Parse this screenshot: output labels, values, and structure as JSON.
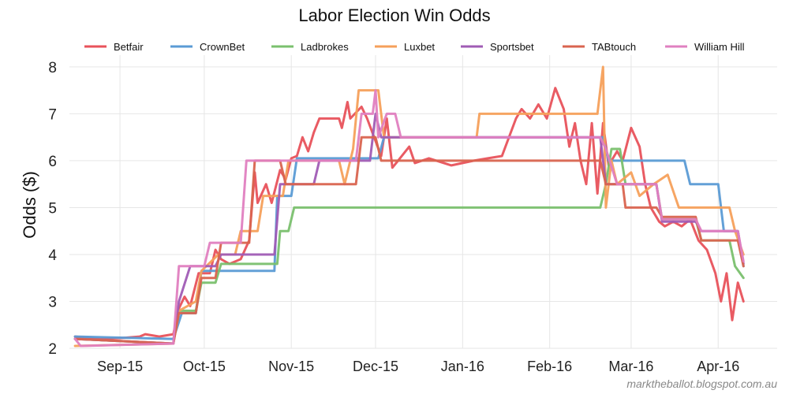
{
  "chart_data": {
    "type": "line",
    "title": "Labor Election Win Odds",
    "xlabel": "",
    "ylabel": "Odds ($)",
    "credit": "marktheballot.blogspot.com.au",
    "xlim": [
      "2015-08-14",
      "2016-04-22"
    ],
    "ylim": [
      2,
      8.25
    ],
    "yticks": [
      2,
      3,
      4,
      5,
      6,
      7,
      8
    ],
    "xticks": [
      {
        "date": "2015-09-01",
        "label": "Sep-15"
      },
      {
        "date": "2015-10-01",
        "label": "Oct-15"
      },
      {
        "date": "2015-11-01",
        "label": "Nov-15"
      },
      {
        "date": "2015-12-01",
        "label": "Dec-15"
      },
      {
        "date": "2016-01-01",
        "label": "Jan-16"
      },
      {
        "date": "2016-02-01",
        "label": "Feb-16"
      },
      {
        "date": "2016-03-01",
        "label": "Mar-16"
      },
      {
        "date": "2016-04-01",
        "label": "Apr-16"
      }
    ],
    "grid": true,
    "legend_position": "top",
    "series": [
      {
        "name": "Betfair",
        "color": "#e8525b",
        "points": [
          [
            "2015-08-16",
            2.25
          ],
          [
            "2015-08-25",
            2.2
          ],
          [
            "2015-09-02",
            2.22
          ],
          [
            "2015-09-08",
            2.25
          ],
          [
            "2015-09-10",
            2.3
          ],
          [
            "2015-09-15",
            2.25
          ],
          [
            "2015-09-20",
            2.3
          ],
          [
            "2015-09-22",
            2.85
          ],
          [
            "2015-09-24",
            3.1
          ],
          [
            "2015-09-26",
            2.9
          ],
          [
            "2015-09-29",
            3.6
          ],
          [
            "2015-10-03",
            3.6
          ],
          [
            "2015-10-05",
            4.1
          ],
          [
            "2015-10-07",
            3.9
          ],
          [
            "2015-10-10",
            3.8
          ],
          [
            "2015-10-14",
            3.9
          ],
          [
            "2015-10-17",
            4.3
          ],
          [
            "2015-10-19",
            5.75
          ],
          [
            "2015-10-20",
            5.1
          ],
          [
            "2015-10-23",
            5.5
          ],
          [
            "2015-10-25",
            5.1
          ],
          [
            "2015-10-28",
            5.8
          ],
          [
            "2015-10-30",
            5.6
          ],
          [
            "2015-11-01",
            6.05
          ],
          [
            "2015-11-03",
            6.1
          ],
          [
            "2015-11-05",
            6.5
          ],
          [
            "2015-11-07",
            6.2
          ],
          [
            "2015-11-09",
            6.6
          ],
          [
            "2015-11-11",
            6.9
          ],
          [
            "2015-11-18",
            6.9
          ],
          [
            "2015-11-19",
            6.7
          ],
          [
            "2015-11-21",
            7.25
          ],
          [
            "2015-11-22",
            6.9
          ],
          [
            "2015-11-26",
            7.15
          ],
          [
            "2015-11-28",
            6.9
          ],
          [
            "2015-12-03",
            6.1
          ],
          [
            "2015-12-05",
            6.9
          ],
          [
            "2015-12-07",
            5.85
          ],
          [
            "2015-12-09",
            6.0
          ],
          [
            "2015-12-13",
            6.3
          ],
          [
            "2015-12-15",
            5.95
          ],
          [
            "2015-12-20",
            6.05
          ],
          [
            "2015-12-28",
            5.9
          ],
          [
            "2016-01-05",
            6.0
          ],
          [
            "2016-01-10",
            6.05
          ],
          [
            "2016-01-15",
            6.1
          ],
          [
            "2016-01-20",
            6.9
          ],
          [
            "2016-01-22",
            7.1
          ],
          [
            "2016-01-25",
            6.9
          ],
          [
            "2016-01-28",
            7.2
          ],
          [
            "2016-01-31",
            6.9
          ],
          [
            "2016-02-03",
            7.55
          ],
          [
            "2016-02-06",
            7.1
          ],
          [
            "2016-02-08",
            6.3
          ],
          [
            "2016-02-10",
            6.8
          ],
          [
            "2016-02-12",
            6.0
          ],
          [
            "2016-02-14",
            5.5
          ],
          [
            "2016-02-16",
            6.8
          ],
          [
            "2016-02-18",
            5.3
          ],
          [
            "2016-02-20",
            6.8
          ],
          [
            "2016-02-22",
            5.9
          ],
          [
            "2016-02-25",
            6.2
          ],
          [
            "2016-02-27",
            6.0
          ],
          [
            "2016-03-01",
            6.7
          ],
          [
            "2016-03-04",
            6.3
          ],
          [
            "2016-03-06",
            5.5
          ],
          [
            "2016-03-08",
            5.0
          ],
          [
            "2016-03-11",
            4.7
          ],
          [
            "2016-03-13",
            4.6
          ],
          [
            "2016-03-16",
            4.7
          ],
          [
            "2016-03-19",
            4.6
          ],
          [
            "2016-03-22",
            4.75
          ],
          [
            "2016-03-25",
            4.3
          ],
          [
            "2016-03-28",
            4.1
          ],
          [
            "2016-03-31",
            3.6
          ],
          [
            "2016-04-02",
            3.0
          ],
          [
            "2016-04-04",
            3.6
          ],
          [
            "2016-04-06",
            2.6
          ],
          [
            "2016-04-08",
            3.4
          ],
          [
            "2016-04-10",
            3.0
          ]
        ]
      },
      {
        "name": "CrownBet",
        "color": "#5b9bd5",
        "points": [
          [
            "2015-08-16",
            2.25
          ],
          [
            "2015-09-20",
            2.2
          ],
          [
            "2015-09-23",
            2.75
          ],
          [
            "2015-09-28",
            2.75
          ],
          [
            "2015-09-30",
            3.65
          ],
          [
            "2015-10-26",
            3.65
          ],
          [
            "2015-10-27",
            5.25
          ],
          [
            "2015-11-01",
            5.25
          ],
          [
            "2015-11-03",
            6.05
          ],
          [
            "2015-12-02",
            6.05
          ],
          [
            "2015-12-04",
            6.5
          ],
          [
            "2016-02-20",
            6.5
          ],
          [
            "2016-02-22",
            6.0
          ],
          [
            "2016-03-20",
            6.0
          ],
          [
            "2016-03-22",
            5.5
          ],
          [
            "2016-04-01",
            5.5
          ],
          [
            "2016-04-03",
            4.5
          ],
          [
            "2016-04-08",
            4.5
          ],
          [
            "2016-04-10",
            3.75
          ]
        ]
      },
      {
        "name": "Ladbrokes",
        "color": "#7ac06e",
        "points": [
          [
            "2015-08-16",
            2.2
          ],
          [
            "2015-09-20",
            2.1
          ],
          [
            "2015-09-22",
            2.8
          ],
          [
            "2015-09-28",
            2.8
          ],
          [
            "2015-09-30",
            3.4
          ],
          [
            "2015-10-05",
            3.4
          ],
          [
            "2015-10-07",
            3.8
          ],
          [
            "2015-10-27",
            3.8
          ],
          [
            "2015-10-28",
            4.5
          ],
          [
            "2015-10-31",
            4.5
          ],
          [
            "2015-11-02",
            5.0
          ],
          [
            "2016-02-19",
            5.0
          ],
          [
            "2016-02-21",
            5.5
          ],
          [
            "2016-02-23",
            6.25
          ],
          [
            "2016-02-26",
            6.25
          ],
          [
            "2016-02-28",
            5.5
          ],
          [
            "2016-03-10",
            5.5
          ],
          [
            "2016-03-12",
            4.75
          ],
          [
            "2016-03-24",
            4.75
          ],
          [
            "2016-03-26",
            4.3
          ],
          [
            "2016-04-05",
            4.3
          ],
          [
            "2016-04-07",
            3.75
          ],
          [
            "2016-04-10",
            3.5
          ]
        ]
      },
      {
        "name": "Luxbet",
        "color": "#f5a05b",
        "points": [
          [
            "2015-08-16",
            2.05
          ],
          [
            "2015-09-20",
            2.1
          ],
          [
            "2015-09-22",
            2.8
          ],
          [
            "2015-09-28",
            3.0
          ],
          [
            "2015-09-30",
            3.65
          ],
          [
            "2015-10-06",
            4.0
          ],
          [
            "2015-10-12",
            4.0
          ],
          [
            "2015-10-14",
            4.5
          ],
          [
            "2015-10-20",
            4.5
          ],
          [
            "2015-10-22",
            5.25
          ],
          [
            "2015-10-29",
            5.25
          ],
          [
            "2015-10-31",
            6.0
          ],
          [
            "2015-11-18",
            6.0
          ],
          [
            "2015-11-20",
            5.5
          ],
          [
            "2015-11-23",
            6.25
          ],
          [
            "2015-11-25",
            7.5
          ],
          [
            "2015-12-02",
            7.5
          ],
          [
            "2015-12-04",
            6.5
          ],
          [
            "2016-01-06",
            6.5
          ],
          [
            "2016-01-07",
            7.0
          ],
          [
            "2016-02-18",
            7.0
          ],
          [
            "2016-02-20",
            8.0
          ],
          [
            "2016-02-21",
            5.0
          ],
          [
            "2016-02-23",
            6.0
          ],
          [
            "2016-02-25",
            5.5
          ],
          [
            "2016-03-01",
            5.75
          ],
          [
            "2016-03-04",
            5.25
          ],
          [
            "2016-03-09",
            5.5
          ],
          [
            "2016-03-14",
            5.7
          ],
          [
            "2016-03-18",
            5.0
          ],
          [
            "2016-04-05",
            5.0
          ],
          [
            "2016-04-07",
            4.5
          ],
          [
            "2016-04-10",
            4.0
          ]
        ]
      },
      {
        "name": "Sportsbet",
        "color": "#a05cb5",
        "points": [
          [
            "2015-08-16",
            2.2
          ],
          [
            "2015-09-20",
            2.1
          ],
          [
            "2015-09-22",
            3.0
          ],
          [
            "2015-09-26",
            3.75
          ],
          [
            "2015-10-05",
            3.75
          ],
          [
            "2015-10-07",
            4.0
          ],
          [
            "2015-10-26",
            4.0
          ],
          [
            "2015-10-28",
            5.5
          ],
          [
            "2015-11-09",
            5.5
          ],
          [
            "2015-11-11",
            6.0
          ],
          [
            "2015-11-29",
            6.0
          ],
          [
            "2015-12-01",
            7.0
          ],
          [
            "2015-12-03",
            6.5
          ],
          [
            "2016-02-19",
            6.5
          ],
          [
            "2016-02-21",
            5.5
          ],
          [
            "2016-03-10",
            5.5
          ],
          [
            "2016-03-12",
            4.7
          ],
          [
            "2016-03-24",
            4.7
          ],
          [
            "2016-03-26",
            4.5
          ],
          [
            "2016-04-08",
            4.5
          ],
          [
            "2016-04-10",
            3.8
          ]
        ]
      },
      {
        "name": "TABtouch",
        "color": "#d9644f",
        "points": [
          [
            "2015-08-16",
            2.2
          ],
          [
            "2015-09-20",
            2.1
          ],
          [
            "2015-09-22",
            2.75
          ],
          [
            "2015-09-28",
            2.75
          ],
          [
            "2015-09-30",
            3.5
          ],
          [
            "2015-10-05",
            3.5
          ],
          [
            "2015-10-07",
            4.25
          ],
          [
            "2015-10-17",
            4.25
          ],
          [
            "2015-10-19",
            6.0
          ],
          [
            "2015-10-28",
            6.0
          ],
          [
            "2015-10-30",
            5.5
          ],
          [
            "2015-11-24",
            5.5
          ],
          [
            "2015-11-26",
            6.5
          ],
          [
            "2015-12-01",
            6.5
          ],
          [
            "2015-12-03",
            6.0
          ],
          [
            "2016-02-19",
            6.0
          ],
          [
            "2016-02-21",
            5.5
          ],
          [
            "2016-02-27",
            5.5
          ],
          [
            "2016-02-28",
            5.0
          ],
          [
            "2016-03-10",
            5.0
          ],
          [
            "2016-03-12",
            4.8
          ],
          [
            "2016-03-24",
            4.8
          ],
          [
            "2016-03-26",
            4.3
          ],
          [
            "2016-04-08",
            4.3
          ],
          [
            "2016-04-10",
            3.75
          ]
        ]
      },
      {
        "name": "William Hill",
        "color": "#e080c0",
        "points": [
          [
            "2015-08-16",
            2.2
          ],
          [
            "2015-08-18",
            2.05
          ],
          [
            "2015-09-20",
            2.1
          ],
          [
            "2015-09-22",
            3.75
          ],
          [
            "2015-10-01",
            3.75
          ],
          [
            "2015-10-03",
            4.25
          ],
          [
            "2015-10-14",
            4.25
          ],
          [
            "2015-10-16",
            6.0
          ],
          [
            "2015-11-24",
            6.0
          ],
          [
            "2015-11-26",
            7.0
          ],
          [
            "2015-11-30",
            7.0
          ],
          [
            "2015-12-01",
            7.5
          ],
          [
            "2015-12-02",
            6.5
          ],
          [
            "2015-12-05",
            7.0
          ],
          [
            "2015-12-08",
            7.0
          ],
          [
            "2015-12-10",
            6.5
          ],
          [
            "2016-02-19",
            6.5
          ],
          [
            "2016-02-21",
            6.25
          ],
          [
            "2016-02-25",
            5.5
          ],
          [
            "2016-03-10",
            5.5
          ],
          [
            "2016-03-12",
            4.75
          ],
          [
            "2016-03-24",
            4.75
          ],
          [
            "2016-03-26",
            4.5
          ],
          [
            "2016-04-08",
            4.5
          ],
          [
            "2016-04-10",
            3.85
          ]
        ]
      }
    ]
  }
}
